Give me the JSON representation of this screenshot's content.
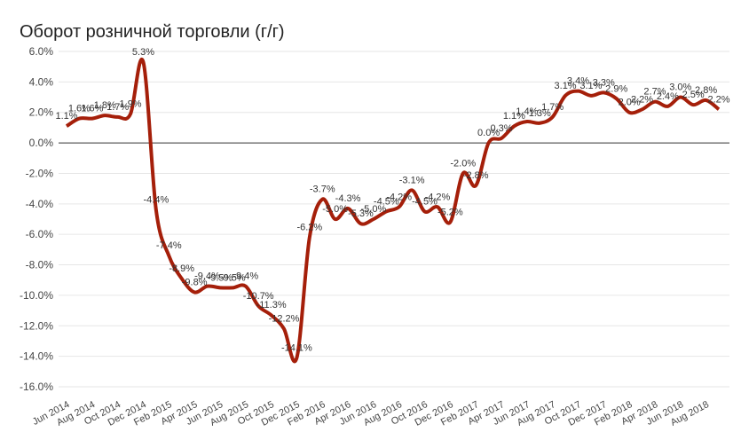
{
  "chart_data": {
    "type": "line",
    "title": "Оборот розничной торговли (г/г)",
    "categories": [
      "Jun 2014",
      null,
      "Aug 2014",
      null,
      "Oct 2014",
      null,
      "Dec 2014",
      null,
      "Feb 2015",
      null,
      "Apr 2015",
      null,
      "Jun 2015",
      null,
      "Aug 2015",
      null,
      "Oct 2015",
      null,
      "Dec 2015",
      null,
      "Feb 2016",
      null,
      "Apr 2016",
      null,
      "Jun 2016",
      null,
      "Aug 2016",
      null,
      "Oct 2016",
      null,
      "Dec 2016",
      null,
      "Feb 2017",
      null,
      "Apr 2017",
      null,
      "Jun 2017",
      null,
      "Aug 2017",
      null,
      "Oct 2017",
      null,
      "Dec 2017",
      null,
      "Feb 2018",
      null,
      "Apr 2018",
      null,
      "Jun 2018",
      null,
      "Aug 2018",
      null
    ],
    "series": [
      {
        "name": "Оборот розничной торговли",
        "color": "#a51f0a",
        "values": [
          1.1,
          1.6,
          1.6,
          1.8,
          1.7,
          1.9,
          5.3,
          -4.4,
          -7.4,
          -8.9,
          -9.8,
          -9.4,
          -9.5,
          -9.5,
          -9.4,
          -10.7,
          -11.3,
          -12.2,
          -14.1,
          -6.2,
          -3.7,
          -5.0,
          -4.3,
          -5.3,
          -5.0,
          -4.5,
          -4.2,
          -3.1,
          -4.5,
          -4.2,
          -5.2,
          -2.0,
          -2.8,
          0.0,
          0.3,
          1.1,
          1.4,
          1.3,
          1.7,
          3.1,
          3.4,
          3.1,
          3.3,
          2.9,
          2.0,
          2.2,
          2.7,
          2.4,
          3.0,
          2.5,
          2.8,
          2.2
        ],
        "value_labels": [
          "1.1%",
          "1.6%",
          "1.6%",
          "1.8%",
          "1.7%",
          "1.9%",
          "5.3%",
          "-4.4%",
          "-7.4%",
          "-8.9%",
          "-9.8%",
          "-9.4%",
          "-9.5%",
          "-9.5%",
          "-9.4%",
          "-10.7%",
          "-11.3%",
          "-12.2%",
          "-14.1%",
          "-6.2%",
          "-3.7%",
          "-5.0%",
          "-4.3%",
          "-5.3%",
          "-5.0%",
          "-4.5%",
          "-4.2%",
          "-3.1%",
          "-4.5%",
          "-4.2%",
          "-5.2%",
          "-2.0%",
          "-2.8%",
          "0.0%",
          "0.3%",
          "1.1%",
          "1.4%",
          "1.3%",
          "1.7%",
          "3.1%",
          "3.4%",
          "3.1%",
          "3.3%",
          "2.9%",
          "2.0%",
          "2.2%",
          "2.7%",
          "2.4%",
          "3.0%",
          "2.5%",
          "2.8%",
          "2.2%"
        ]
      }
    ],
    "ylim": [
      -16,
      6
    ],
    "yticks": [
      {
        "value": -16,
        "label": "-16.0%"
      },
      {
        "value": -14,
        "label": "-14.0%"
      },
      {
        "value": -12,
        "label": "-12.0%"
      },
      {
        "value": -10,
        "label": "-10.0%"
      },
      {
        "value": -8,
        "label": "-8.0%"
      },
      {
        "value": -6,
        "label": "-6.0%"
      },
      {
        "value": -4,
        "label": "-4.0%"
      },
      {
        "value": -2,
        "label": "-2.0%"
      },
      {
        "value": 0,
        "label": "0.0%"
      },
      {
        "value": 2,
        "label": "2.0%"
      },
      {
        "value": 4,
        "label": "4.0%"
      },
      {
        "value": 6,
        "label": "6.0%"
      }
    ],
    "grid": true
  }
}
